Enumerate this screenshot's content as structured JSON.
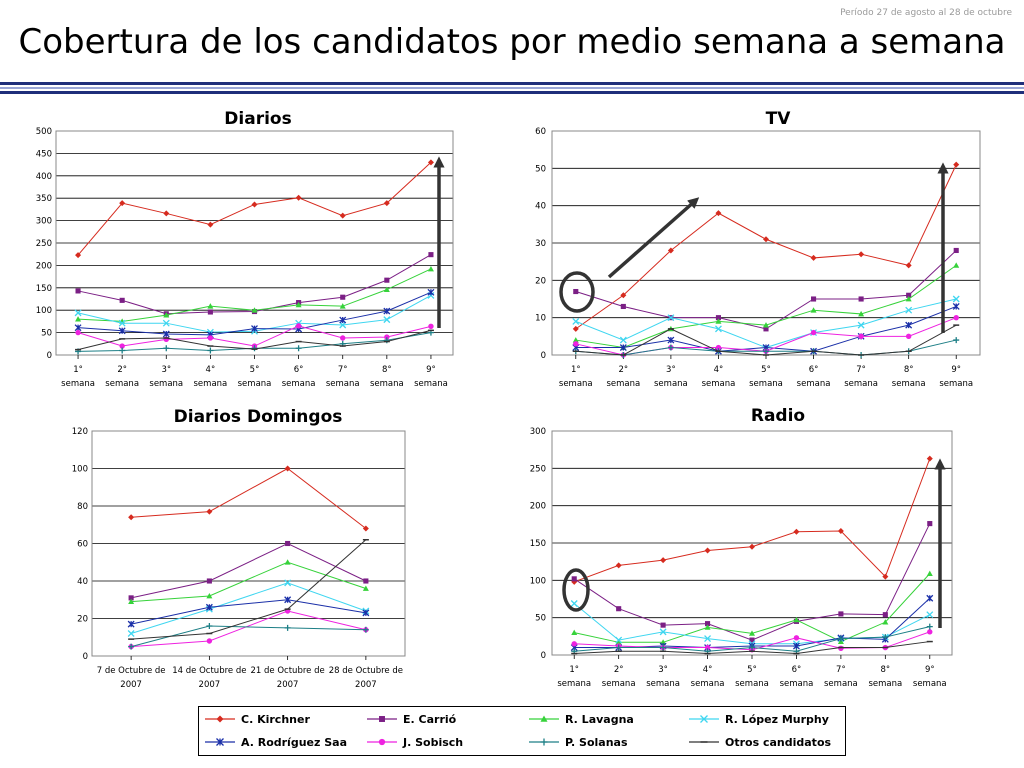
{
  "header": {
    "period": "Período 27 de agosto al 28 de octubre",
    "title": "Cobertura de los candidatos por medio semana a semana"
  },
  "legend": [
    {
      "name": "C. Kirchner",
      "color": "#d62b1f",
      "marker": "diamond"
    },
    {
      "name": "E. Carrió",
      "color": "#7b1f85",
      "marker": "square"
    },
    {
      "name": "R. Lavagna",
      "color": "#36d23a",
      "marker": "triangle"
    },
    {
      "name": "R. López Murphy",
      "color": "#3fd6f0",
      "marker": "x"
    },
    {
      "name": "A. Rodríguez Saa",
      "color": "#1a2fa8",
      "marker": "star"
    },
    {
      "name": "J. Sobisch",
      "color": "#ee22e0",
      "marker": "circle"
    },
    {
      "name": "P. Solanas",
      "color": "#1d7f86",
      "marker": "plus"
    },
    {
      "name": "Otros candidatos",
      "color": "#333333",
      "marker": "dash"
    }
  ],
  "chart_data": [
    {
      "type": "line",
      "title": "Diarios",
      "categories": [
        "1° semana",
        "2° semana",
        "3° semana",
        "4° semana",
        "5° semana",
        "6° semana",
        "7° semana",
        "8° semana",
        "9° semana"
      ],
      "ylim": [
        0,
        500
      ],
      "yticks": [
        0,
        50,
        100,
        150,
        200,
        250,
        300,
        350,
        400,
        450,
        500
      ],
      "series": [
        {
          "name": "C. Kirchner",
          "values": [
            223,
            339,
            316,
            291,
            336,
            351,
            311,
            339,
            430
          ]
        },
        {
          "name": "E. Carrió",
          "values": [
            143,
            122,
            92,
            96,
            97,
            117,
            129,
            167,
            224
          ]
        },
        {
          "name": "R. Lavagna",
          "values": [
            80,
            75,
            89,
            109,
            100,
            112,
            109,
            146,
            192
          ]
        },
        {
          "name": "R. López Murphy",
          "values": [
            94,
            71,
            71,
            51,
            53,
            71,
            67,
            79,
            133
          ]
        },
        {
          "name": "A. Rodríguez Saa",
          "values": [
            61,
            54,
            47,
            45,
            59,
            58,
            78,
            98,
            140
          ]
        },
        {
          "name": "J. Sobisch",
          "values": [
            50,
            20,
            35,
            38,
            20,
            65,
            38,
            40,
            64
          ]
        },
        {
          "name": "P. Solanas",
          "values": [
            8,
            10,
            15,
            10,
            15,
            15,
            25,
            33,
            50
          ]
        },
        {
          "name": "Otros candidatos",
          "values": [
            12,
            36,
            38,
            20,
            13,
            30,
            20,
            30,
            55
          ]
        }
      ]
    },
    {
      "type": "line",
      "title": "TV",
      "categories": [
        "1° semana",
        "2° semana",
        "3° semana",
        "4° semana",
        "5° semana",
        "6° semana",
        "7° semana",
        "8° semana",
        "9° semana"
      ],
      "ylim": [
        0,
        60
      ],
      "yticks": [
        0,
        10,
        20,
        30,
        40,
        50,
        60
      ],
      "series": [
        {
          "name": "C. Kirchner",
          "values": [
            7,
            16,
            28,
            38,
            31,
            26,
            27,
            24,
            51
          ]
        },
        {
          "name": "E. Carrió",
          "values": [
            17,
            13,
            10,
            10,
            7,
            15,
            15,
            16,
            28
          ]
        },
        {
          "name": "R. Lavagna",
          "values": [
            4,
            2,
            7,
            9,
            8,
            12,
            11,
            15,
            24
          ]
        },
        {
          "name": "R. López Murphy",
          "values": [
            9,
            4,
            10,
            7,
            2,
            6,
            8,
            12,
            15
          ]
        },
        {
          "name": "A. Rodríguez Saa",
          "values": [
            2,
            2,
            4,
            1,
            2,
            1,
            5,
            8,
            13
          ]
        },
        {
          "name": "J. Sobisch",
          "values": [
            3,
            0,
            2,
            2,
            1,
            6,
            5,
            5,
            10
          ]
        },
        {
          "name": "P. Solanas",
          "values": [
            1,
            0,
            2,
            1,
            1,
            1,
            0,
            1,
            4
          ]
        },
        {
          "name": "Otros candidatos",
          "values": [
            1,
            0,
            7,
            1,
            0,
            1,
            0,
            1,
            8
          ]
        }
      ]
    },
    {
      "type": "line",
      "title": "Diarios Domingos",
      "categories": [
        "7 de Octubre de 2007",
        "14 de Octubre de 2007",
        "21 de Octubre de 2007",
        "28 de Octubre de 2007"
      ],
      "ylim": [
        0,
        120
      ],
      "yticks": [
        0,
        20,
        40,
        60,
        80,
        100,
        120
      ],
      "series": [
        {
          "name": "C. Kirchner",
          "values": [
            74,
            77,
            100,
            68
          ]
        },
        {
          "name": "E. Carrió",
          "values": [
            31,
            40,
            60,
            40
          ]
        },
        {
          "name": "R. Lavagna",
          "values": [
            29,
            32,
            50,
            36
          ]
        },
        {
          "name": "R. López Murphy",
          "values": [
            12,
            25,
            39,
            24
          ]
        },
        {
          "name": "A. Rodríguez Saa",
          "values": [
            17,
            26,
            30,
            23
          ]
        },
        {
          "name": "J. Sobisch",
          "values": [
            5,
            8,
            24,
            14
          ]
        },
        {
          "name": "P. Solanas",
          "values": [
            5,
            16,
            15,
            14
          ]
        },
        {
          "name": "Otros candidatos",
          "values": [
            9,
            12,
            25,
            62
          ]
        }
      ]
    },
    {
      "type": "line",
      "title": "Radio",
      "categories": [
        "1° semana",
        "2° semana",
        "3° semana",
        "4° semana",
        "5° semana",
        "6° semana",
        "7° semana",
        "8° semana",
        "9° semana"
      ],
      "ylim": [
        0,
        300
      ],
      "yticks": [
        0,
        50,
        100,
        150,
        200,
        250,
        300
      ],
      "series": [
        {
          "name": "C. Kirchner",
          "values": [
            98,
            120,
            127,
            140,
            145,
            165,
            166,
            105,
            263
          ]
        },
        {
          "name": "E. Carrió",
          "values": [
            102,
            62,
            40,
            42,
            20,
            45,
            55,
            54,
            176
          ]
        },
        {
          "name": "R. Lavagna",
          "values": [
            30,
            17,
            17,
            37,
            29,
            47,
            18,
            44,
            109
          ]
        },
        {
          "name": "R. López Murphy",
          "values": [
            69,
            20,
            31,
            22,
            15,
            15,
            22,
            24,
            54
          ]
        },
        {
          "name": "A. Rodríguez Saa",
          "values": [
            10,
            10,
            12,
            10,
            12,
            12,
            23,
            21,
            76
          ]
        },
        {
          "name": "J. Sobisch",
          "values": [
            15,
            12,
            10,
            10,
            7,
            23,
            9,
            10,
            31
          ]
        },
        {
          "name": "P. Solanas",
          "values": [
            5,
            10,
            10,
            5,
            10,
            5,
            22,
            24,
            38
          ]
        },
        {
          "name": "Otros candidatos",
          "values": [
            2,
            5,
            5,
            2,
            5,
            2,
            10,
            10,
            18
          ]
        }
      ]
    }
  ]
}
